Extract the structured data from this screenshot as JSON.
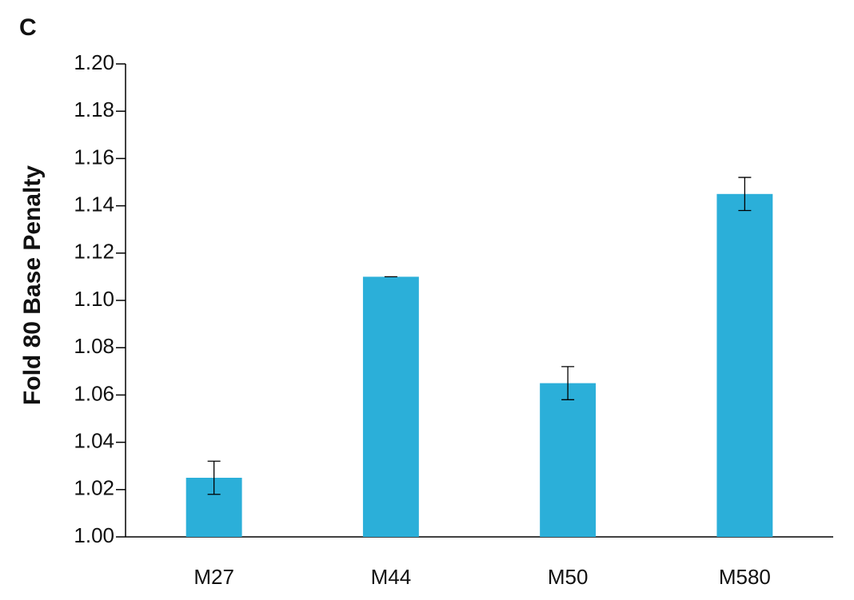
{
  "chart_data": {
    "type": "bar",
    "panel_label": "C",
    "y_label": "Fold 80 Base Penalty",
    "categories": [
      "M27",
      "M44",
      "M50",
      "M580"
    ],
    "values": [
      1.025,
      1.11,
      1.065,
      1.145
    ],
    "errors": [
      0.007,
      0,
      0.007,
      0.007
    ],
    "color": "#2bafd9",
    "ylim": [
      1.0,
      1.2
    ],
    "yticks": [
      {
        "value": 1.0,
        "label": "1.00"
      },
      1.02,
      1.04,
      1.06,
      1.08,
      {
        "value": 1.1,
        "label": "1.10"
      },
      1.12,
      1.14,
      1.16,
      1.18,
      {
        "value": 1.2,
        "label": "1.20"
      }
    ],
    "grid": false
  }
}
